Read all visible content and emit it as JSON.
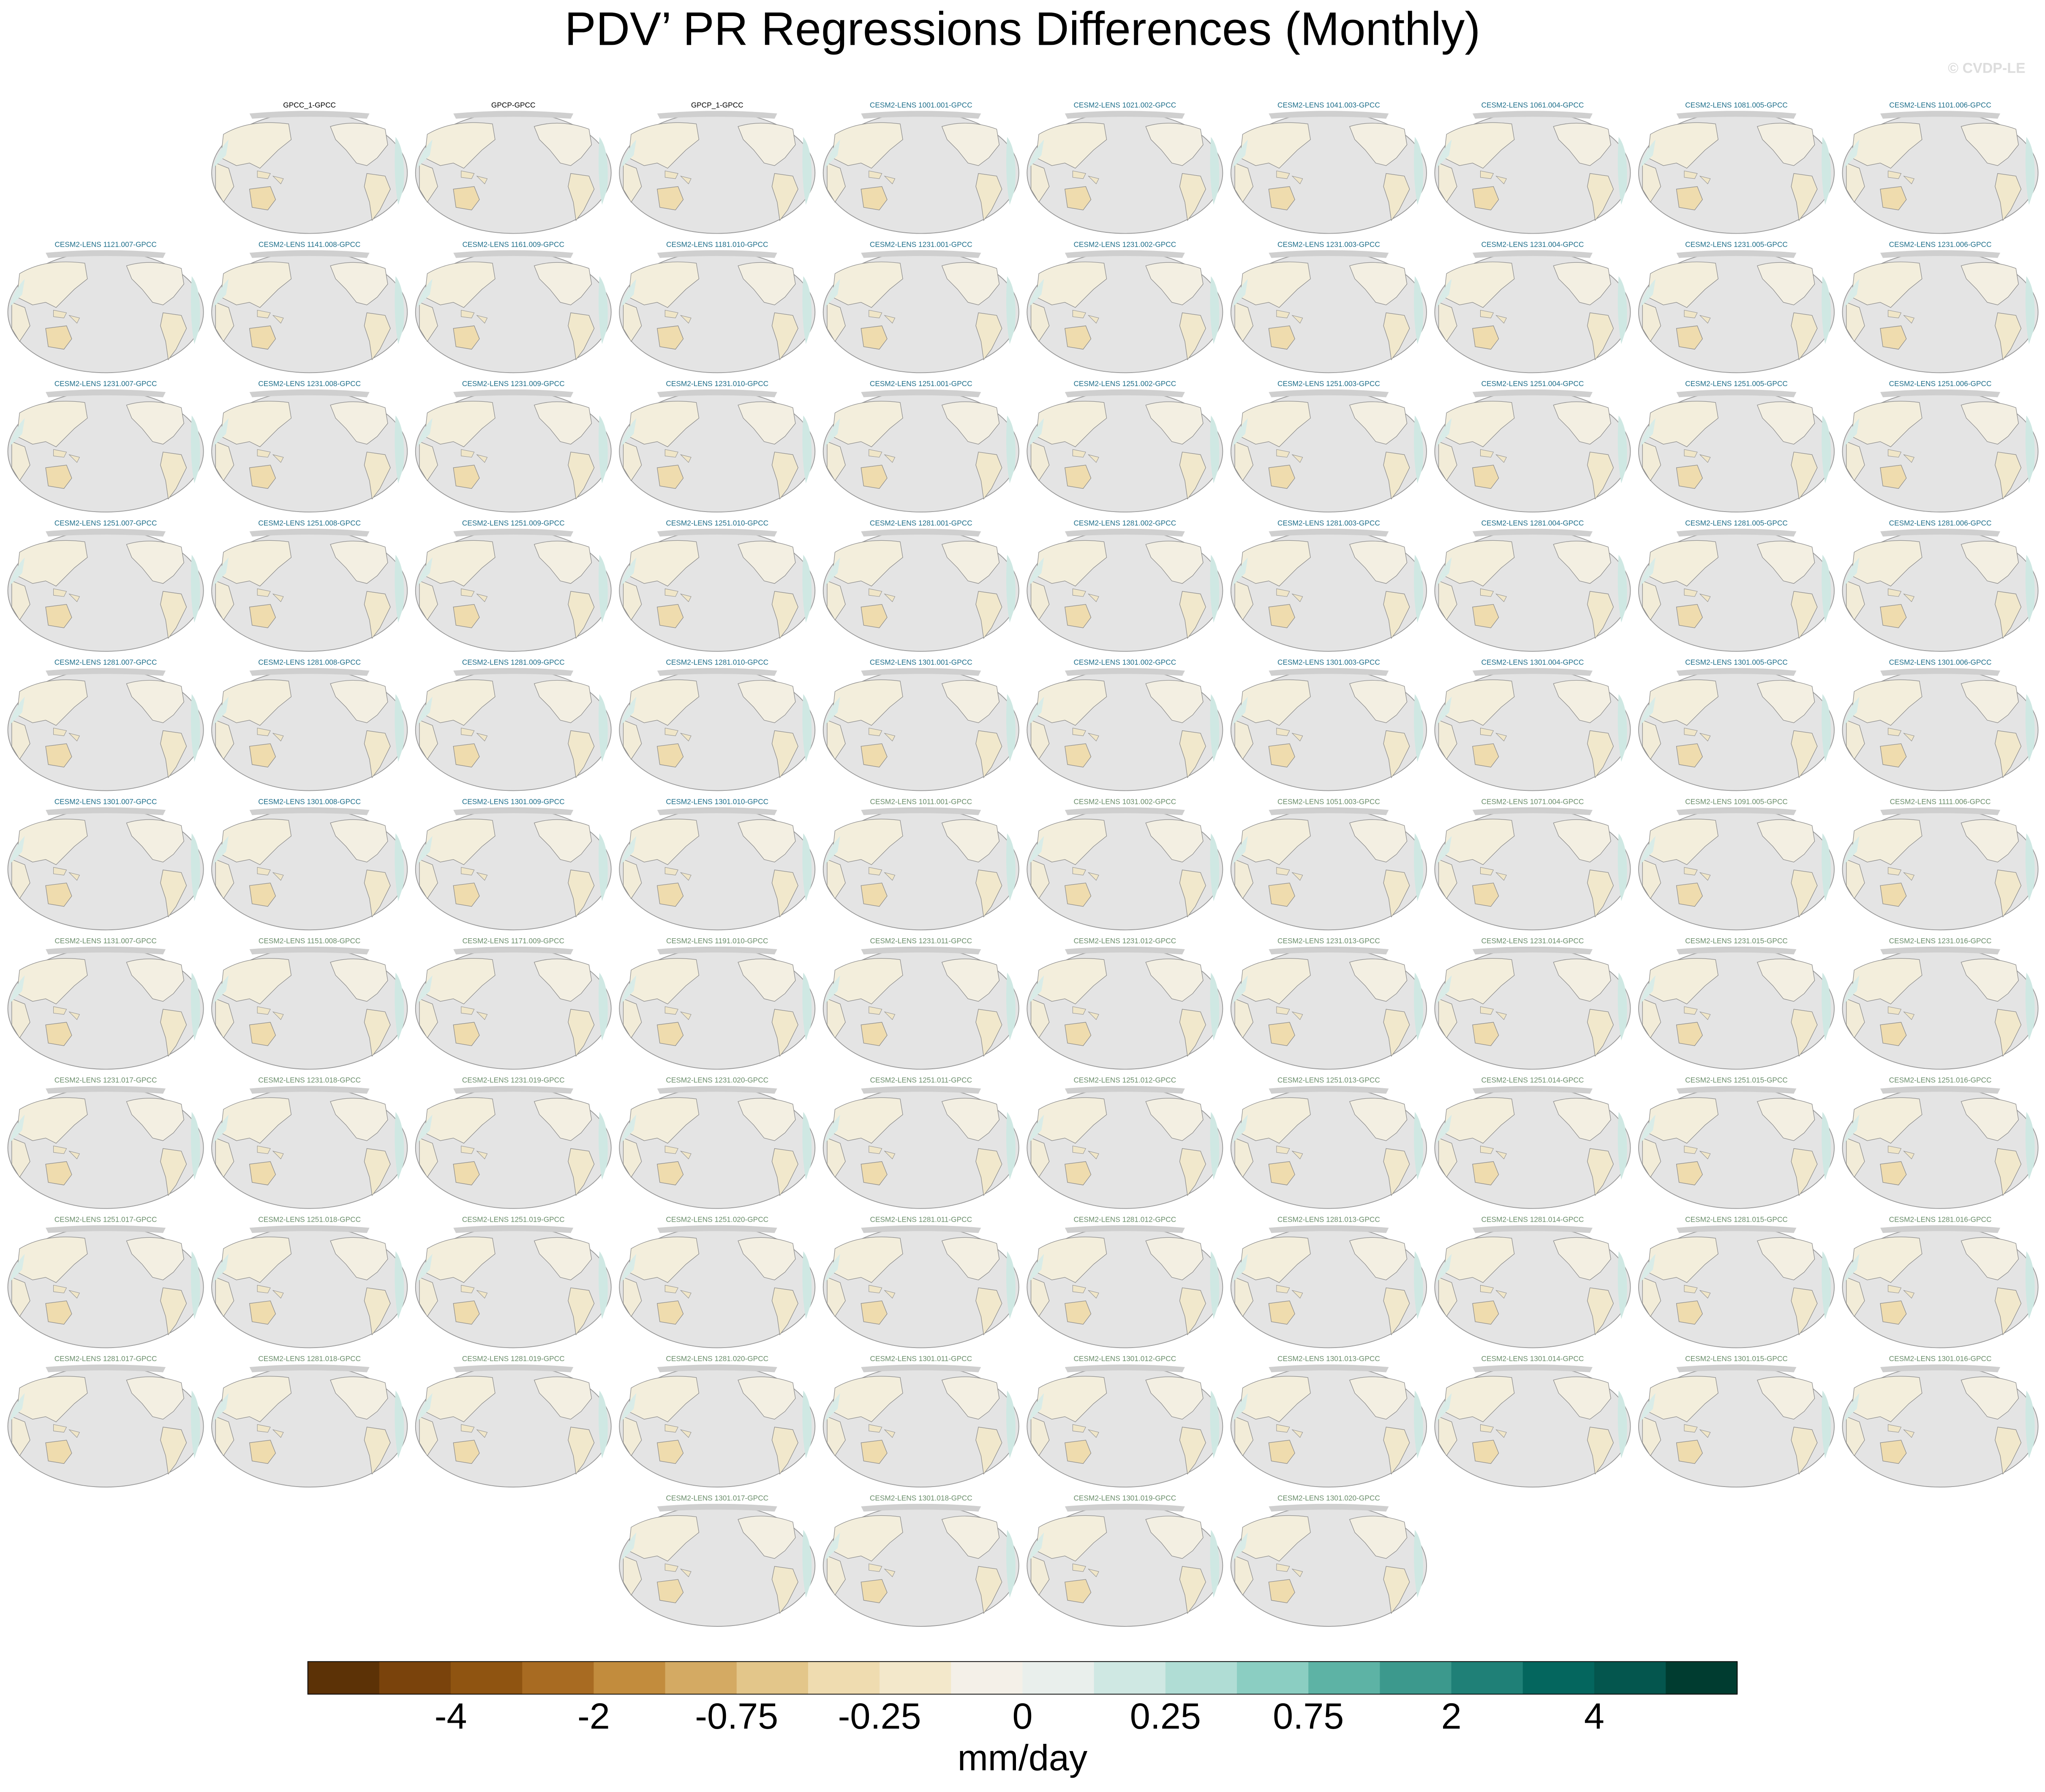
{
  "title": "PDV’ PR Regressions Differences (Monthly)",
  "watermark": "© CVDP-LE",
  "panels": [
    {
      "title": "GPCC_1-GPCC",
      "color": "#000000"
    },
    {
      "title": "GPCP-GPCC",
      "color": "#000000"
    },
    {
      "title": "GPCP_1-GPCC",
      "color": "#000000"
    },
    {
      "title": "CESM2-LENS 1001.001-GPCC",
      "color": "#1f6f8b"
    },
    {
      "title": "CESM2-LENS 1021.002-GPCC",
      "color": "#1f6f8b"
    },
    {
      "title": "CESM2-LENS 1041.003-GPCC",
      "color": "#1f6f8b"
    },
    {
      "title": "CESM2-LENS 1061.004-GPCC",
      "color": "#1f6f8b"
    },
    {
      "title": "CESM2-LENS 1081.005-GPCC",
      "color": "#1f6f8b"
    },
    {
      "title": "CESM2-LENS 1101.006-GPCC",
      "color": "#1f6f8b"
    },
    {
      "title": "CESM2-LENS 1121.007-GPCC",
      "color": "#1f6f8b"
    },
    {
      "title": "CESM2-LENS 1141.008-GPCC",
      "color": "#1f6f8b"
    },
    {
      "title": "CESM2-LENS 1161.009-GPCC",
      "color": "#1f6f8b"
    },
    {
      "title": "CESM2-LENS 1181.010-GPCC",
      "color": "#1f6f8b"
    },
    {
      "title": "CESM2-LENS 1231.001-GPCC",
      "color": "#1f6f8b"
    },
    {
      "title": "CESM2-LENS 1231.002-GPCC",
      "color": "#1f6f8b"
    },
    {
      "title": "CESM2-LENS 1231.003-GPCC",
      "color": "#1f6f8b"
    },
    {
      "title": "CESM2-LENS 1231.004-GPCC",
      "color": "#1f6f8b"
    },
    {
      "title": "CESM2-LENS 1231.005-GPCC",
      "color": "#1f6f8b"
    },
    {
      "title": "CESM2-LENS 1231.006-GPCC",
      "color": "#1f6f8b"
    },
    {
      "title": "CESM2-LENS 1231.007-GPCC",
      "color": "#1f6f8b"
    },
    {
      "title": "CESM2-LENS 1231.008-GPCC",
      "color": "#1f6f8b"
    },
    {
      "title": "CESM2-LENS 1231.009-GPCC",
      "color": "#1f6f8b"
    },
    {
      "title": "CESM2-LENS 1231.010-GPCC",
      "color": "#1f6f8b"
    },
    {
      "title": "CESM2-LENS 1251.001-GPCC",
      "color": "#1f6f8b"
    },
    {
      "title": "CESM2-LENS 1251.002-GPCC",
      "color": "#1f6f8b"
    },
    {
      "title": "CESM2-LENS 1251.003-GPCC",
      "color": "#1f6f8b"
    },
    {
      "title": "CESM2-LENS 1251.004-GPCC",
      "color": "#1f6f8b"
    },
    {
      "title": "CESM2-LENS 1251.005-GPCC",
      "color": "#1f6f8b"
    },
    {
      "title": "CESM2-LENS 1251.006-GPCC",
      "color": "#1f6f8b"
    },
    {
      "title": "CESM2-LENS 1251.007-GPCC",
      "color": "#1f6f8b"
    },
    {
      "title": "CESM2-LENS 1251.008-GPCC",
      "color": "#1f6f8b"
    },
    {
      "title": "CESM2-LENS 1251.009-GPCC",
      "color": "#1f6f8b"
    },
    {
      "title": "CESM2-LENS 1251.010-GPCC",
      "color": "#1f6f8b"
    },
    {
      "title": "CESM2-LENS 1281.001-GPCC",
      "color": "#1f6f8b"
    },
    {
      "title": "CESM2-LENS 1281.002-GPCC",
      "color": "#1f6f8b"
    },
    {
      "title": "CESM2-LENS 1281.003-GPCC",
      "color": "#1f6f8b"
    },
    {
      "title": "CESM2-LENS 1281.004-GPCC",
      "color": "#1f6f8b"
    },
    {
      "title": "CESM2-LENS 1281.005-GPCC",
      "color": "#1f6f8b"
    },
    {
      "title": "CESM2-LENS 1281.006-GPCC",
      "color": "#1f6f8b"
    },
    {
      "title": "CESM2-LENS 1281.007-GPCC",
      "color": "#1f6f8b"
    },
    {
      "title": "CESM2-LENS 1281.008-GPCC",
      "color": "#1f6f8b"
    },
    {
      "title": "CESM2-LENS 1281.009-GPCC",
      "color": "#1f6f8b"
    },
    {
      "title": "CESM2-LENS 1281.010-GPCC",
      "color": "#1f6f8b"
    },
    {
      "title": "CESM2-LENS 1301.001-GPCC",
      "color": "#1f6f8b"
    },
    {
      "title": "CESM2-LENS 1301.002-GPCC",
      "color": "#1f6f8b"
    },
    {
      "title": "CESM2-LENS 1301.003-GPCC",
      "color": "#1f6f8b"
    },
    {
      "title": "CESM2-LENS 1301.004-GPCC",
      "color": "#1f6f8b"
    },
    {
      "title": "CESM2-LENS 1301.005-GPCC",
      "color": "#1f6f8b"
    },
    {
      "title": "CESM2-LENS 1301.006-GPCC",
      "color": "#1f6f8b"
    },
    {
      "title": "CESM2-LENS 1301.007-GPCC",
      "color": "#1f6f8b"
    },
    {
      "title": "CESM2-LENS 1301.008-GPCC",
      "color": "#1f6f8b"
    },
    {
      "title": "CESM2-LENS 1301.009-GPCC",
      "color": "#1f6f8b"
    },
    {
      "title": "CESM2-LENS 1301.010-GPCC",
      "color": "#1f6f8b"
    },
    {
      "title": "CESM2-LENS 1011.001-GPCC",
      "color": "#6b8e6b"
    },
    {
      "title": "CESM2-LENS 1031.002-GPCC",
      "color": "#6b8e6b"
    },
    {
      "title": "CESM2-LENS 1051.003-GPCC",
      "color": "#6b8e6b"
    },
    {
      "title": "CESM2-LENS 1071.004-GPCC",
      "color": "#6b8e6b"
    },
    {
      "title": "CESM2-LENS 1091.005-GPCC",
      "color": "#6b8e6b"
    },
    {
      "title": "CESM2-LENS 1111.006-GPCC",
      "color": "#6b8e6b"
    },
    {
      "title": "CESM2-LENS 1131.007-GPCC",
      "color": "#6b8e6b"
    },
    {
      "title": "CESM2-LENS 1151.008-GPCC",
      "color": "#6b8e6b"
    },
    {
      "title": "CESM2-LENS 1171.009-GPCC",
      "color": "#6b8e6b"
    },
    {
      "title": "CESM2-LENS 1191.010-GPCC",
      "color": "#6b8e6b"
    },
    {
      "title": "CESM2-LENS 1231.011-GPCC",
      "color": "#6b8e6b"
    },
    {
      "title": "CESM2-LENS 1231.012-GPCC",
      "color": "#6b8e6b"
    },
    {
      "title": "CESM2-LENS 1231.013-GPCC",
      "color": "#6b8e6b"
    },
    {
      "title": "CESM2-LENS 1231.014-GPCC",
      "color": "#6b8e6b"
    },
    {
      "title": "CESM2-LENS 1231.015-GPCC",
      "color": "#6b8e6b"
    },
    {
      "title": "CESM2-LENS 1231.016-GPCC",
      "color": "#6b8e6b"
    },
    {
      "title": "CESM2-LENS 1231.017-GPCC",
      "color": "#6b8e6b"
    },
    {
      "title": "CESM2-LENS 1231.018-GPCC",
      "color": "#6b8e6b"
    },
    {
      "title": "CESM2-LENS 1231.019-GPCC",
      "color": "#6b8e6b"
    },
    {
      "title": "CESM2-LENS 1231.020-GPCC",
      "color": "#6b8e6b"
    },
    {
      "title": "CESM2-LENS 1251.011-GPCC",
      "color": "#6b8e6b"
    },
    {
      "title": "CESM2-LENS 1251.012-GPCC",
      "color": "#6b8e6b"
    },
    {
      "title": "CESM2-LENS 1251.013-GPCC",
      "color": "#6b8e6b"
    },
    {
      "title": "CESM2-LENS 1251.014-GPCC",
      "color": "#6b8e6b"
    },
    {
      "title": "CESM2-LENS 1251.015-GPCC",
      "color": "#6b8e6b"
    },
    {
      "title": "CESM2-LENS 1251.016-GPCC",
      "color": "#6b8e6b"
    },
    {
      "title": "CESM2-LENS 1251.017-GPCC",
      "color": "#6b8e6b"
    },
    {
      "title": "CESM2-LENS 1251.018-GPCC",
      "color": "#6b8e6b"
    },
    {
      "title": "CESM2-LENS 1251.019-GPCC",
      "color": "#6b8e6b"
    },
    {
      "title": "CESM2-LENS 1251.020-GPCC",
      "color": "#6b8e6b"
    },
    {
      "title": "CESM2-LENS 1281.011-GPCC",
      "color": "#6b8e6b"
    },
    {
      "title": "CESM2-LENS 1281.012-GPCC",
      "color": "#6b8e6b"
    },
    {
      "title": "CESM2-LENS 1281.013-GPCC",
      "color": "#6b8e6b"
    },
    {
      "title": "CESM2-LENS 1281.014-GPCC",
      "color": "#6b8e6b"
    },
    {
      "title": "CESM2-LENS 1281.015-GPCC",
      "color": "#6b8e6b"
    },
    {
      "title": "CESM2-LENS 1281.016-GPCC",
      "color": "#6b8e6b"
    },
    {
      "title": "CESM2-LENS 1281.017-GPCC",
      "color": "#6b8e6b"
    },
    {
      "title": "CESM2-LENS 1281.018-GPCC",
      "color": "#6b8e6b"
    },
    {
      "title": "CESM2-LENS 1281.019-GPCC",
      "color": "#6b8e6b"
    },
    {
      "title": "CESM2-LENS 1281.020-GPCC",
      "color": "#6b8e6b"
    },
    {
      "title": "CESM2-LENS 1301.011-GPCC",
      "color": "#6b8e6b"
    },
    {
      "title": "CESM2-LENS 1301.012-GPCC",
      "color": "#6b8e6b"
    },
    {
      "title": "CESM2-LENS 1301.013-GPCC",
      "color": "#6b8e6b"
    },
    {
      "title": "CESM2-LENS 1301.014-GPCC",
      "color": "#6b8e6b"
    },
    {
      "title": "CESM2-LENS 1301.015-GPCC",
      "color": "#6b8e6b"
    },
    {
      "title": "CESM2-LENS 1301.016-GPCC",
      "color": "#6b8e6b"
    },
    {
      "title": "CESM2-LENS 1301.017-GPCC",
      "color": "#6b8e6b"
    },
    {
      "title": "CESM2-LENS 1301.018-GPCC",
      "color": "#6b8e6b"
    },
    {
      "title": "CESM2-LENS 1301.019-GPCC",
      "color": "#6b8e6b"
    },
    {
      "title": "CESM2-LENS 1301.020-GPCC",
      "color": "#6b8e6b"
    }
  ],
  "colorbar": {
    "colors": [
      "#5c3206",
      "#7a430c",
      "#8f5411",
      "#a86b22",
      "#c28c3d",
      "#d4aa63",
      "#e3c68a",
      "#efdcb0",
      "#f3e8cb",
      "#f4f0e8",
      "#e9efec",
      "#cfe8e3",
      "#b0ddd5",
      "#8bcec2",
      "#5db3a5",
      "#3c998d",
      "#1f8077",
      "#04665e",
      "#04564e",
      "#003c30"
    ],
    "ticks": [
      -4,
      -2,
      -0.75,
      -0.25,
      0,
      0.25,
      0.75,
      2,
      4
    ],
    "unit": "mm/day"
  }
}
